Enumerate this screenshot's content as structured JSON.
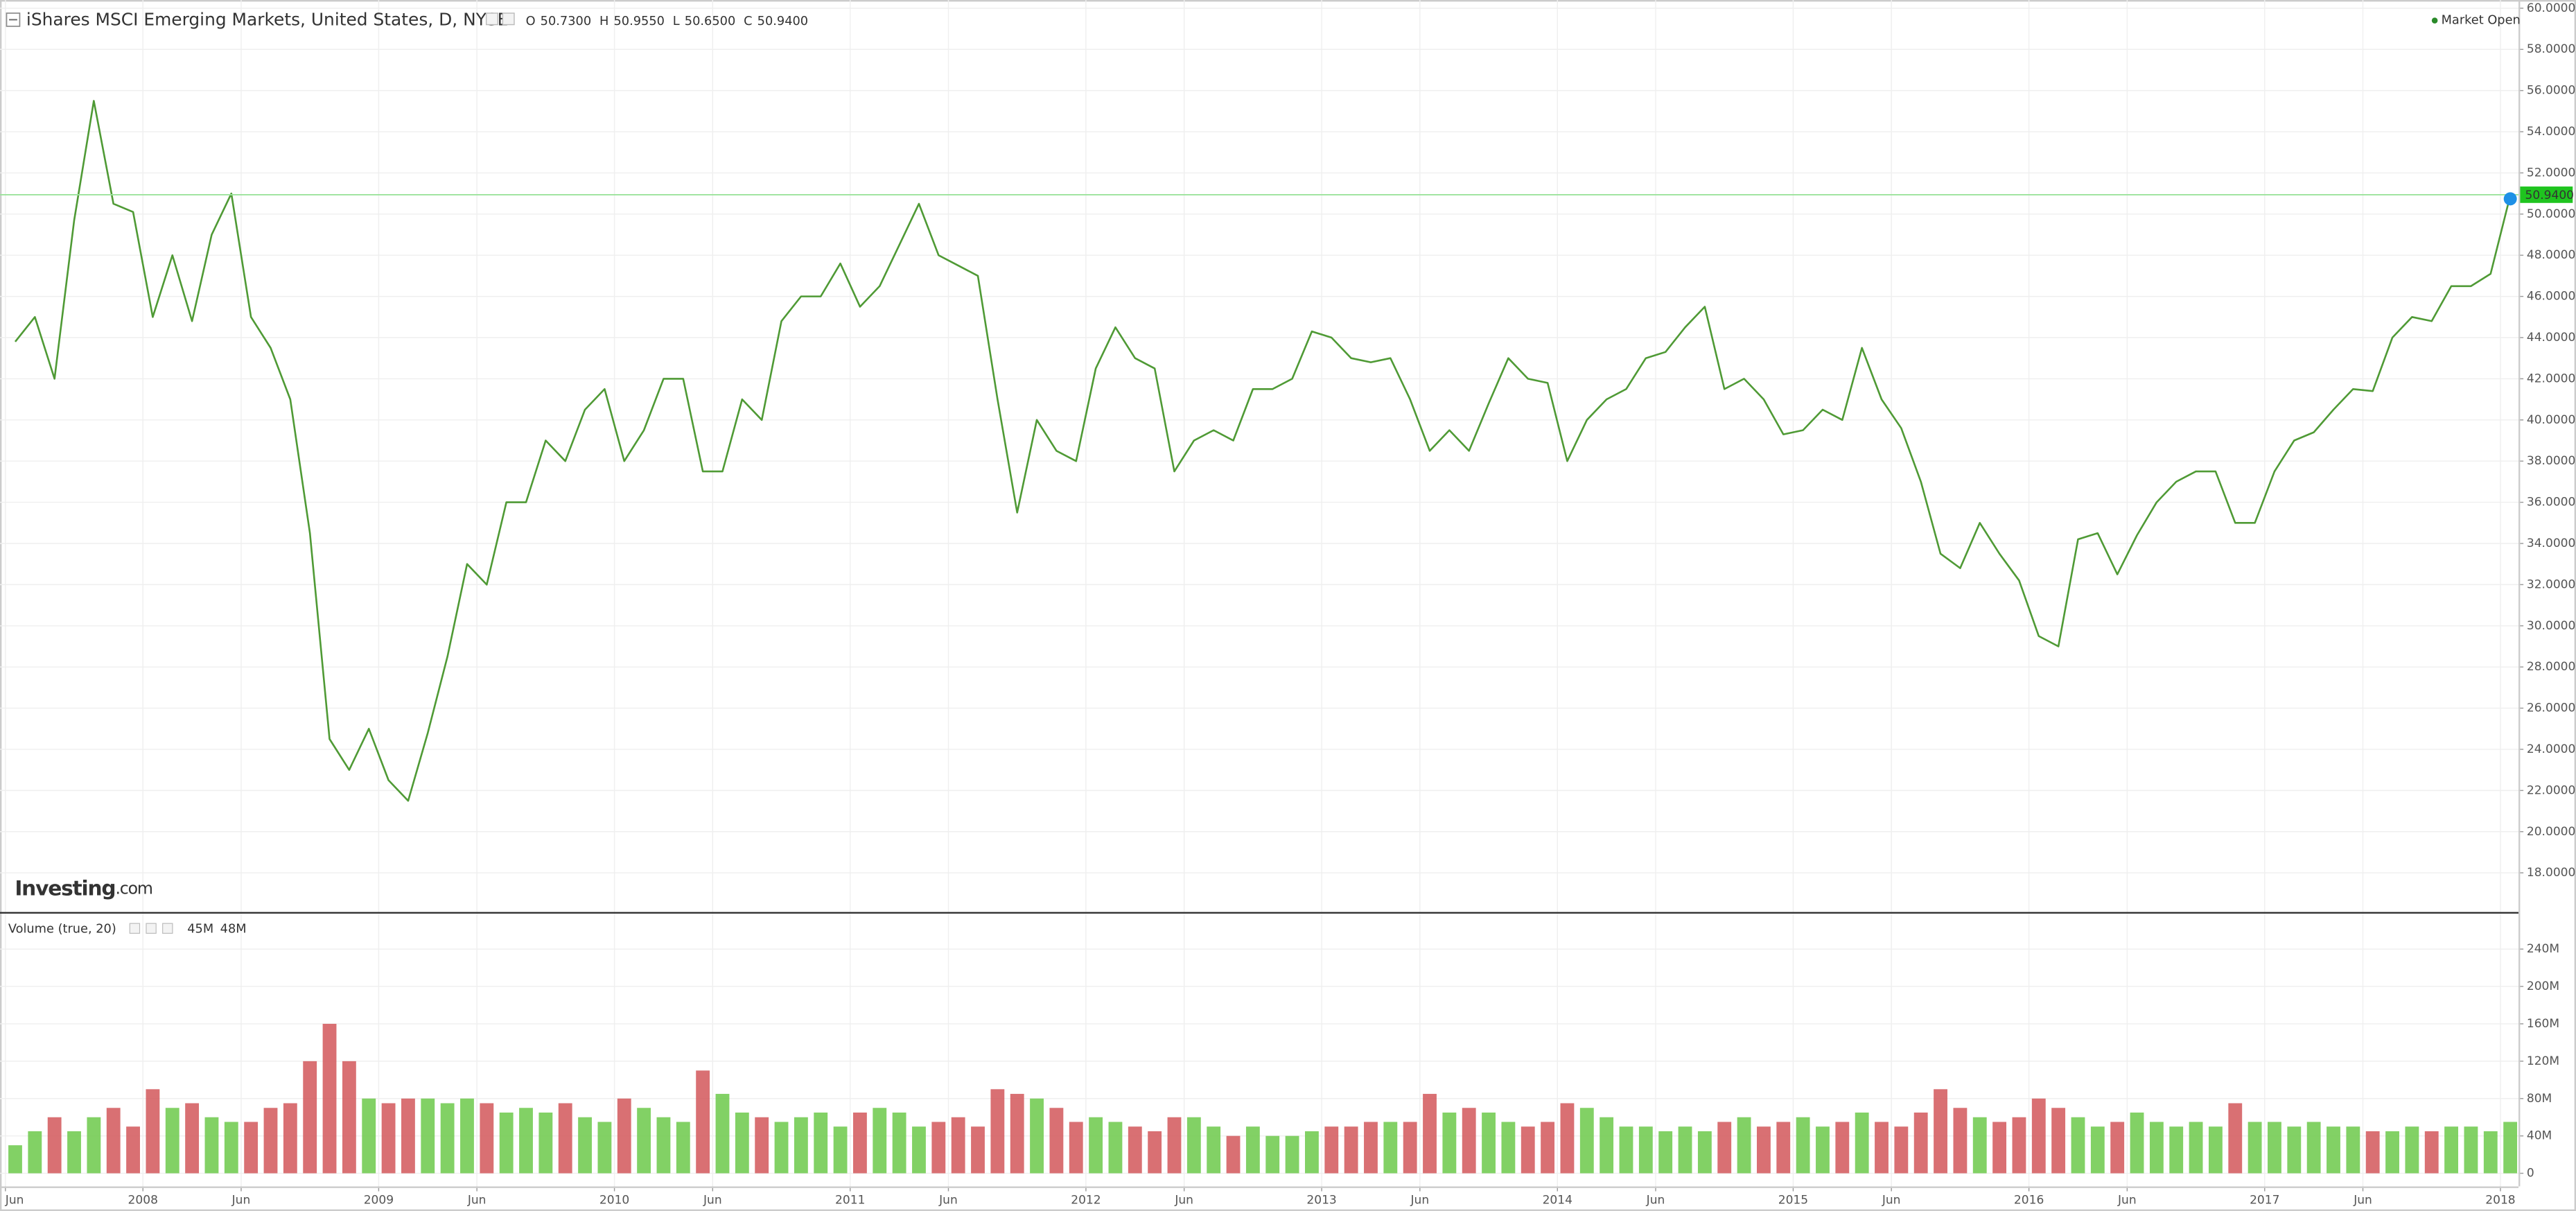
{
  "app": {
    "status": "Market Open",
    "logo_main": "Investing",
    "logo_suffix": ".com"
  },
  "chart_data": [
    {
      "type": "line",
      "title": "iShares MSCI Emerging Markets, United States, D, NYSE",
      "ohlc": [
        {
          "name": "O",
          "value": 50.73,
          "label": "50.7300"
        },
        {
          "name": "H",
          "value": 50.955,
          "label": "50.9550"
        },
        {
          "name": "L",
          "value": 50.65,
          "label": "50.6500"
        },
        {
          "name": "C",
          "value": 50.94,
          "label": "50.9400"
        }
      ],
      "last": {
        "value": 50.94,
        "label": "50.9400"
      },
      "color": "#4f9a35",
      "last_color": "#1fc41f",
      "x": [
        "2007-06",
        "2007-07",
        "2007-08",
        "2007-09",
        "2007-10",
        "2007-11",
        "2007-12",
        "2008-01",
        "2008-02",
        "2008-03",
        "2008-04",
        "2008-05",
        "2008-06",
        "2008-07",
        "2008-08",
        "2008-09",
        "2008-10",
        "2008-11",
        "2008-12",
        "2009-01",
        "2009-02",
        "2009-03",
        "2009-04",
        "2009-05",
        "2009-06",
        "2009-07",
        "2009-08",
        "2009-09",
        "2009-10",
        "2009-11",
        "2009-12",
        "2010-01",
        "2010-02",
        "2010-03",
        "2010-04",
        "2010-05",
        "2010-06",
        "2010-07",
        "2010-08",
        "2010-09",
        "2010-10",
        "2010-11",
        "2010-12",
        "2011-01",
        "2011-02",
        "2011-03",
        "2011-04",
        "2011-05",
        "2011-06",
        "2011-07",
        "2011-08",
        "2011-09",
        "2011-10",
        "2011-11",
        "2011-12",
        "2012-01",
        "2012-02",
        "2012-03",
        "2012-04",
        "2012-05",
        "2012-06",
        "2012-07",
        "2012-08",
        "2012-09",
        "2012-10",
        "2012-11",
        "2012-12",
        "2013-01",
        "2013-02",
        "2013-03",
        "2013-04",
        "2013-05",
        "2013-06",
        "2013-07",
        "2013-08",
        "2013-09",
        "2013-10",
        "2013-11",
        "2013-12",
        "2014-01",
        "2014-02",
        "2014-03",
        "2014-04",
        "2014-05",
        "2014-06",
        "2014-07",
        "2014-08",
        "2014-09",
        "2014-10",
        "2014-11",
        "2014-12",
        "2015-01",
        "2015-02",
        "2015-03",
        "2015-04",
        "2015-05",
        "2015-06",
        "2015-07",
        "2015-08",
        "2015-09",
        "2015-10",
        "2015-11",
        "2015-12",
        "2016-01",
        "2016-02",
        "2016-03",
        "2016-04",
        "2016-05",
        "2016-06",
        "2016-07",
        "2016-08",
        "2016-09",
        "2016-10",
        "2016-11",
        "2016-12",
        "2017-01",
        "2017-02",
        "2017-03",
        "2017-04",
        "2017-05",
        "2017-06",
        "2017-07",
        "2017-08",
        "2017-09",
        "2017-10",
        "2017-11",
        "2017-12",
        "2018-01"
      ],
      "values": [
        43.8,
        45,
        42,
        49.7,
        55.5,
        50.5,
        50.1,
        45,
        48,
        44.8,
        49,
        51,
        45,
        43.5,
        41,
        34.5,
        24.5,
        23,
        25,
        22.5,
        21.5,
        24.8,
        28.5,
        33,
        32,
        36,
        36,
        39,
        38,
        40.5,
        41.5,
        38,
        39.5,
        42,
        42,
        37.5,
        37.5,
        41,
        40,
        44.8,
        46,
        46,
        47.6,
        45.5,
        46.5,
        48.5,
        50.5,
        48,
        47.5,
        47,
        41,
        35.5,
        40,
        38.5,
        38,
        42.5,
        44.5,
        43,
        42.5,
        37.5,
        39,
        39.5,
        39,
        41.5,
        41.5,
        42,
        44.3,
        44,
        43,
        42.8,
        43,
        41,
        38.5,
        39.5,
        38.5,
        40.8,
        43,
        42,
        41.8,
        38,
        40,
        41,
        41.5,
        43,
        43.3,
        44.5,
        45.5,
        41.5,
        42,
        41,
        39.3,
        39.5,
        40.5,
        40,
        43.5,
        41,
        39.6,
        37,
        33.5,
        32.8,
        35,
        33.5,
        32.2,
        29.5,
        29,
        34.2,
        34.5,
        32.5,
        34.4,
        36,
        37,
        37.5,
        37.5,
        35,
        35,
        37.5,
        39,
        39.4,
        40.5,
        41.5,
        41.4,
        44,
        45,
        44.8,
        46.5,
        46.5,
        47.1,
        50.9
      ],
      "xticks": [
        {
          "value": "2007-06",
          "label": "Jun"
        },
        {
          "value": "2008-01",
          "label": "2008"
        },
        {
          "value": "2008-06",
          "label": "Jun"
        },
        {
          "value": "2009-01",
          "label": "2009"
        },
        {
          "value": "2009-06",
          "label": "Jun"
        },
        {
          "value": "2010-01",
          "label": "2010"
        },
        {
          "value": "2010-06",
          "label": "Jun"
        },
        {
          "value": "2011-01",
          "label": "2011"
        },
        {
          "value": "2011-06",
          "label": "Jun"
        },
        {
          "value": "2012-01",
          "label": "2012"
        },
        {
          "value": "2012-06",
          "label": "Jun"
        },
        {
          "value": "2013-01",
          "label": "2013"
        },
        {
          "value": "2013-06",
          "label": "Jun"
        },
        {
          "value": "2014-01",
          "label": "2014"
        },
        {
          "value": "2014-06",
          "label": "Jun"
        },
        {
          "value": "2015-01",
          "label": "2015"
        },
        {
          "value": "2015-06",
          "label": "Jun"
        },
        {
          "value": "2016-01",
          "label": "2016"
        },
        {
          "value": "2016-06",
          "label": "Jun"
        },
        {
          "value": "2017-01",
          "label": "2017"
        },
        {
          "value": "2017-06",
          "label": "Jun"
        },
        {
          "value": "2018-01",
          "label": "2018"
        }
      ],
      "ylim": [
        16.1,
        60.0
      ],
      "yticks": [
        {
          "value": 18,
          "label": "18.0000"
        },
        {
          "value": 20,
          "label": "20.0000"
        },
        {
          "value": 22,
          "label": "22.0000"
        },
        {
          "value": 24,
          "label": "24.0000"
        },
        {
          "value": 26,
          "label": "26.0000"
        },
        {
          "value": 28,
          "label": "28.0000"
        },
        {
          "value": 30,
          "label": "30.0000"
        },
        {
          "value": 32,
          "label": "32.0000"
        },
        {
          "value": 34,
          "label": "34.0000"
        },
        {
          "value": 36,
          "label": "36.0000"
        },
        {
          "value": 38,
          "label": "38.0000"
        },
        {
          "value": 40,
          "label": "40.0000"
        },
        {
          "value": 42,
          "label": "42.0000"
        },
        {
          "value": 44,
          "label": "44.0000"
        },
        {
          "value": 46,
          "label": "46.0000"
        },
        {
          "value": 48,
          "label": "48.0000"
        },
        {
          "value": 50,
          "label": "50.0000"
        },
        {
          "value": 52,
          "label": "52.0000"
        },
        {
          "value": 54,
          "label": "54.0000"
        },
        {
          "value": 56,
          "label": "56.0000"
        },
        {
          "value": 58,
          "label": "58.0000"
        },
        {
          "value": 60,
          "label": "60.0000"
        }
      ],
      "grid": true
    },
    {
      "type": "bar",
      "title": "Volume (true, 20)",
      "readout": [
        {
          "value": 45000000,
          "label": "45M",
          "color": "#2bb52b"
        },
        {
          "value": 48000000,
          "label": "48M",
          "color": "#222222"
        }
      ],
      "up_color": "#6cc94a",
      "down_color": "#d2575a",
      "values": [
        30000000,
        45000000,
        60000000,
        45000000,
        60000000,
        70000000,
        50000000,
        90000000,
        70000000,
        75000000,
        60000000,
        55000000,
        55000000,
        70000000,
        75000000,
        120000000,
        160000000,
        120000000,
        80000000,
        75000000,
        80000000,
        80000000,
        75000000,
        80000000,
        75000000,
        65000000,
        70000000,
        65000000,
        75000000,
        60000000,
        55000000,
        80000000,
        70000000,
        60000000,
        55000000,
        110000000,
        85000000,
        65000000,
        60000000,
        55000000,
        60000000,
        65000000,
        50000000,
        65000000,
        70000000,
        65000000,
        50000000,
        55000000,
        60000000,
        50000000,
        90000000,
        85000000,
        80000000,
        70000000,
        55000000,
        60000000,
        55000000,
        50000000,
        45000000,
        60000000,
        60000000,
        50000000,
        40000000,
        50000000,
        40000000,
        40000000,
        45000000,
        50000000,
        50000000,
        55000000,
        55000000,
        55000000,
        85000000,
        65000000,
        70000000,
        65000000,
        55000000,
        50000000,
        55000000,
        75000000,
        70000000,
        60000000,
        50000000,
        50000000,
        45000000,
        50000000,
        45000000,
        55000000,
        60000000,
        50000000,
        55000000,
        60000000,
        50000000,
        55000000,
        65000000,
        55000000,
        50000000,
        65000000,
        90000000,
        70000000,
        60000000,
        55000000,
        60000000,
        80000000,
        70000000,
        60000000,
        50000000,
        55000000,
        65000000,
        55000000,
        50000000,
        55000000,
        50000000,
        75000000,
        55000000,
        55000000,
        50000000,
        55000000,
        50000000,
        50000000,
        45000000,
        45000000,
        50000000,
        45000000,
        50000000,
        50000000,
        45000000,
        55000000
      ],
      "ylim": [
        -14000000,
        278000000
      ],
      "yticks": [
        0,
        {
          "value": 40000000,
          "label": "40M"
        },
        {
          "value": 80000000,
          "label": "80M"
        },
        {
          "value": 120000000,
          "label": "120M"
        },
        {
          "value": 160000000,
          "label": "160M"
        },
        {
          "value": 200000000,
          "label": "200M"
        },
        {
          "value": 240000000,
          "label": "240M"
        }
      ],
      "grid": true
    }
  ]
}
